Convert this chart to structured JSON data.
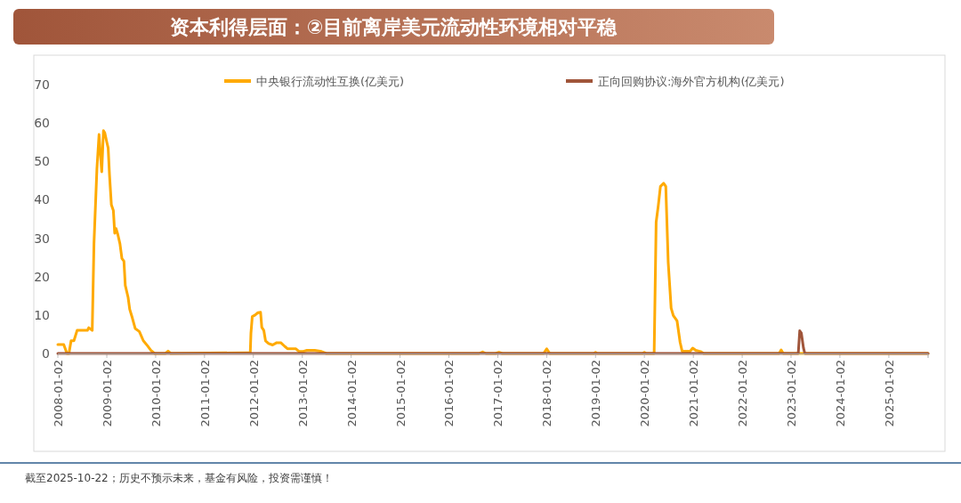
{
  "chart_data": {
    "type": "line",
    "title": "资本利得层面：②目前离岸美元流动性环境相对平稳",
    "xlim": [
      "2008-01-02",
      "2025-10-22"
    ],
    "xticks": [
      "2008-01-02",
      "2009-01-02",
      "2010-01-02",
      "2011-01-02",
      "2012-01-02",
      "2013-01-02",
      "2014-01-02",
      "2015-01-02",
      "2016-01-02",
      "2017-01-02",
      "2018-01-02",
      "2019-01-02",
      "2020-01-02",
      "2021-01-02",
      "2022-01-02",
      "2023-01-02",
      "2024-01-02",
      "2025-01-02"
    ],
    "ylim": [
      0,
      70
    ],
    "yticks": [
      0,
      10,
      20,
      30,
      40,
      50,
      60,
      70
    ],
    "legend": "top",
    "grid": false,
    "series": [
      {
        "name": "中央银行流动性互换(亿美元)",
        "color": "#ffaa00",
        "x": [
          "2008-01-02",
          "2008-02-15",
          "2008-03-10",
          "2008-03-25",
          "2008-04-10",
          "2008-05-01",
          "2008-05-25",
          "2008-08-10",
          "2008-08-20",
          "2008-09-15",
          "2008-09-28",
          "2008-10-20",
          "2008-11-05",
          "2008-11-15",
          "2008-11-25",
          "2008-12-08",
          "2008-12-18",
          "2009-01-02",
          "2009-01-12",
          "2009-01-22",
          "2009-02-05",
          "2009-02-20",
          "2009-03-02",
          "2009-03-12",
          "2009-03-25",
          "2009-04-10",
          "2009-04-25",
          "2009-05-10",
          "2009-05-20",
          "2009-06-10",
          "2009-06-22",
          "2009-07-12",
          "2009-08-02",
          "2009-09-02",
          "2009-10-02",
          "2009-11-02",
          "2009-11-28",
          "2009-12-25",
          "2010-03-15",
          "2010-04-05",
          "2010-04-25",
          "2011-11-15",
          "2011-12-10",
          "2011-12-15",
          "2011-12-25",
          "2012-01-15",
          "2012-02-05",
          "2012-02-25",
          "2012-03-05",
          "2012-03-20",
          "2012-04-02",
          "2012-04-25",
          "2012-05-25",
          "2012-06-25",
          "2012-07-25",
          "2012-08-25",
          "2012-09-15",
          "2012-11-15",
          "2012-12-05",
          "2013-01-05",
          "2013-02-05",
          "2013-04-05",
          "2013-05-25",
          "2013-07-01",
          "2016-08-15",
          "2016-09-10",
          "2016-10-05",
          "2016-12-15",
          "2017-01-10",
          "2017-02-05",
          "2017-12-10",
          "2018-01-02",
          "2018-01-25",
          "2018-12-20",
          "2019-01-02",
          "2019-01-15",
          "2019-12-20",
          "2020-01-02",
          "2020-01-15",
          "2020-03-15",
          "2020-03-30",
          "2020-04-15",
          "2020-05-01",
          "2020-05-25",
          "2020-06-10",
          "2020-06-28",
          "2020-07-20",
          "2020-08-05",
          "2020-09-02",
          "2020-09-25",
          "2020-10-10",
          "2020-12-10",
          "2020-12-28",
          "2021-01-20",
          "2021-02-25",
          "2021-03-20",
          "2022-10-05",
          "2022-10-20",
          "2022-11-05",
          "2025-10-22"
        ],
        "values": [
          2.3,
          2.3,
          0,
          0,
          3.3,
          3.3,
          6.0,
          6.0,
          6.7,
          6.0,
          28.6,
          48,
          57,
          52,
          47.3,
          58,
          57.4,
          55,
          53.5,
          46.5,
          38.7,
          37.2,
          31.3,
          32.5,
          31,
          28.6,
          24.7,
          24,
          17.7,
          14.6,
          11.5,
          9.2,
          6.5,
          5.7,
          3.3,
          2,
          0.8,
          0,
          0,
          0.6,
          0,
          0.2,
          0.2,
          5.3,
          9.6,
          10,
          10.6,
          10.7,
          6.8,
          6,
          3.3,
          2.6,
          2.2,
          2.8,
          2.8,
          1.8,
          1.2,
          1.2,
          0.6,
          0.5,
          0.8,
          0.8,
          0.5,
          0,
          0,
          0.4,
          0,
          0,
          0.3,
          0,
          0,
          1.2,
          0,
          0,
          0.3,
          0,
          0,
          0.3,
          0,
          0,
          34.2,
          38.5,
          43.5,
          44.3,
          43.5,
          23.8,
          11.8,
          9.9,
          8.5,
          2.9,
          0.6,
          0.6,
          1.4,
          0.8,
          0.5,
          0,
          0,
          0.9,
          0,
          0
        ]
      },
      {
        "name": "正向回购协议:海外官方机构(亿美元)",
        "color": "#a0553a",
        "x": [
          "2008-01-02",
          "2023-02-25",
          "2023-03-08",
          "2023-03-20",
          "2023-04-05",
          "2023-04-15",
          "2025-10-22"
        ],
        "values": [
          0,
          0,
          5.9,
          5.3,
          1.4,
          0,
          0
        ]
      }
    ],
    "annotations": [
      "截至2025-10-22；历史不预示未来，基金有风险，投资需谨慎！"
    ]
  }
}
